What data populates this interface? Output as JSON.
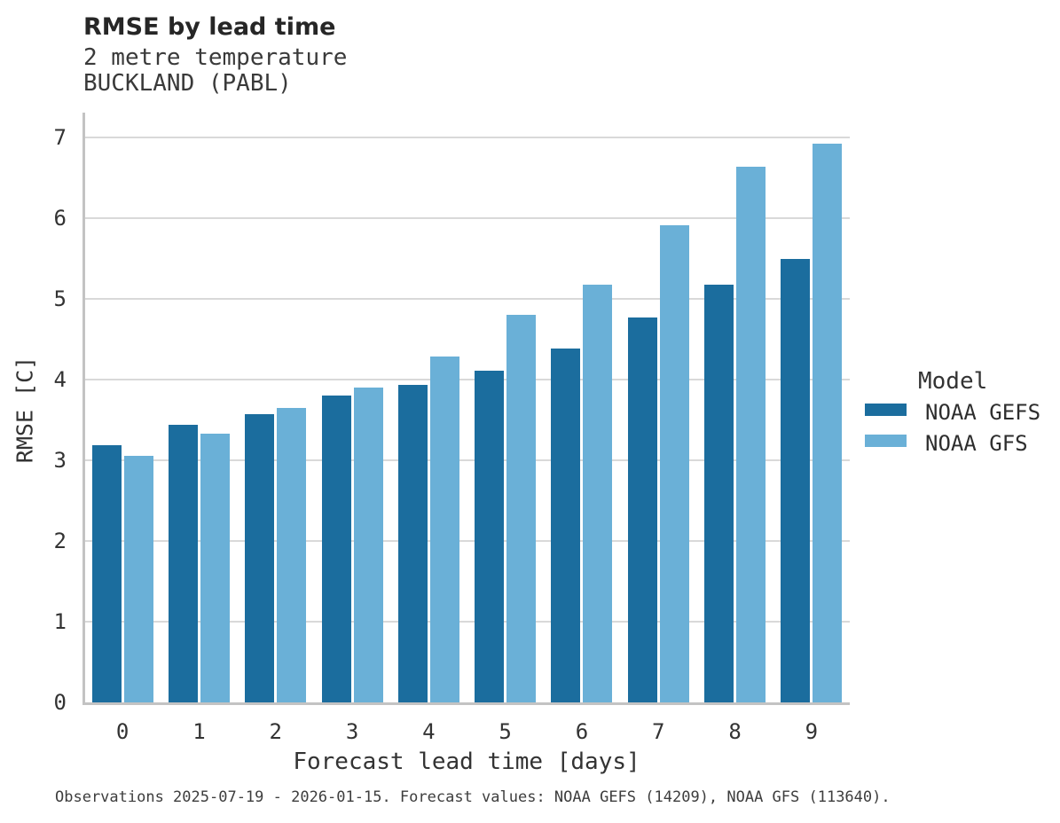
{
  "header": {
    "title": "RMSE by lead time",
    "subtitle_line1": "2 metre temperature",
    "subtitle_line2": "BUCKLAND (PABL)"
  },
  "chart_data": {
    "type": "bar",
    "title": "RMSE by lead time",
    "subtitle": [
      "2 metre temperature",
      "BUCKLAND (PABL)"
    ],
    "categories": [
      "0",
      "1",
      "2",
      "3",
      "4",
      "5",
      "6",
      "7",
      "8",
      "9"
    ],
    "series": [
      {
        "name": "NOAA GEFS",
        "color": "#1b6d9e",
        "values": [
          3.18,
          3.44,
          3.57,
          3.8,
          3.93,
          4.11,
          4.38,
          4.77,
          5.17,
          5.49
        ]
      },
      {
        "name": "NOAA GFS",
        "color": "#6ab0d7",
        "values": [
          3.05,
          3.33,
          3.65,
          3.9,
          4.28,
          4.8,
          5.17,
          5.91,
          6.63,
          6.92
        ]
      }
    ],
    "xlabel": "Forecast lead time [days]",
    "ylabel": "RMSE [C]",
    "ylim": [
      0,
      7.3
    ],
    "yticks": [
      0,
      1,
      2,
      3,
      4,
      5,
      6,
      7
    ],
    "grid": true,
    "legend_title": "Model",
    "legend_position": "right-center"
  },
  "footer": {
    "text": "Observations 2025-07-19 - 2026-01-15. Forecast values: NOAA GEFS (14209), NOAA GFS (113640)."
  },
  "colors": {
    "grid": "#d9d9d9",
    "spine": "#c3c3c3",
    "background": "#ffffff"
  }
}
